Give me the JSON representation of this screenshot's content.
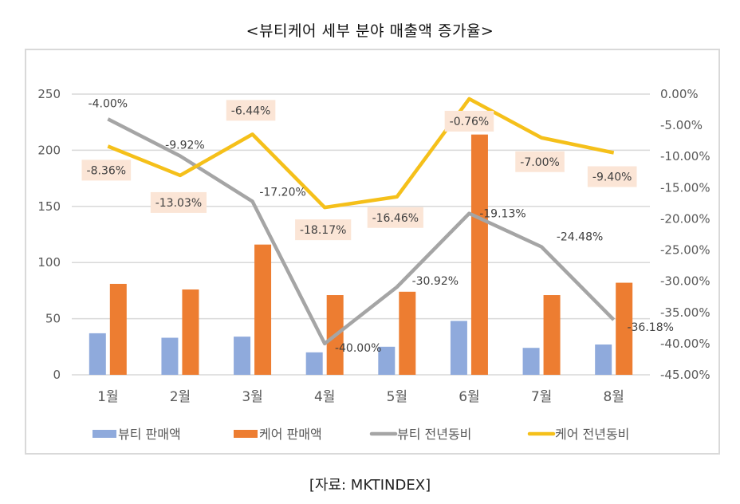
{
  "title": "<뷰티케어 세부 분야 매출액 증가율>",
  "source": "[자료: MKTINDEX]",
  "colors": {
    "beauty_sales": "#8faadc",
    "care_sales": "#ed7d31",
    "beauty_yoy": "#a5a5a5",
    "care_yoy": "#f5c01a",
    "label_box": "#fbe5d6",
    "grid": "#d9d9d9"
  },
  "chart_data": {
    "type": "bar",
    "title": "<뷰티케어 세부 분야 매출액 증가율>",
    "categories": [
      "1월",
      "2월",
      "3월",
      "4월",
      "5월",
      "6월",
      "7월",
      "8월"
    ],
    "series": [
      {
        "name": "뷰티 판매액",
        "type": "bar",
        "axis": "left",
        "values": [
          37,
          33,
          34,
          20,
          25,
          48,
          24,
          27
        ]
      },
      {
        "name": "케어 판매액",
        "type": "bar",
        "axis": "left",
        "values": [
          81,
          76,
          116,
          71,
          74,
          214,
          71,
          82
        ]
      },
      {
        "name": "뷰티 전년동비",
        "type": "line",
        "axis": "right",
        "values": [
          -4.0,
          -9.92,
          -17.2,
          -40.0,
          -30.92,
          -19.13,
          -24.48,
          -36.18
        ],
        "labels": [
          "-4.00%",
          "-9.92%",
          "-17.20%",
          "-40.00%",
          "-30.92%",
          "-19.13%",
          "-24.48%",
          "-36.18%"
        ]
      },
      {
        "name": "케어 전년동비",
        "type": "line",
        "axis": "right",
        "values": [
          -8.36,
          -13.03,
          -6.44,
          -18.17,
          -16.46,
          -0.76,
          -7.0,
          -9.4
        ],
        "labels": [
          "-8.36%",
          "-13.03%",
          "-6.44%",
          "-18.17%",
          "-16.46%",
          "-0.76%",
          "-7.00%",
          "-9.40%"
        ]
      }
    ],
    "y_left": {
      "ticks": [
        "0",
        "50",
        "100",
        "150",
        "200",
        "250"
      ],
      "ylim": [
        0,
        250
      ]
    },
    "y_right": {
      "ticks": [
        "0.00%",
        "-5.00%",
        "-10.00%",
        "-15.00%",
        "-20.00%",
        "-25.00%",
        "-30.00%",
        "-35.00%",
        "-40.00%",
        "-45.00%"
      ],
      "ylim": [
        -45,
        0
      ]
    },
    "xlabel": "",
    "ylabel": "",
    "grid": true,
    "legend_position": "bottom"
  },
  "legend": [
    {
      "label": "뷰티 판매액",
      "kind": "bar"
    },
    {
      "label": "케어 판매액",
      "kind": "bar"
    },
    {
      "label": "뷰티 전년동비",
      "kind": "line"
    },
    {
      "label": "케어 전년동비",
      "kind": "line"
    }
  ]
}
